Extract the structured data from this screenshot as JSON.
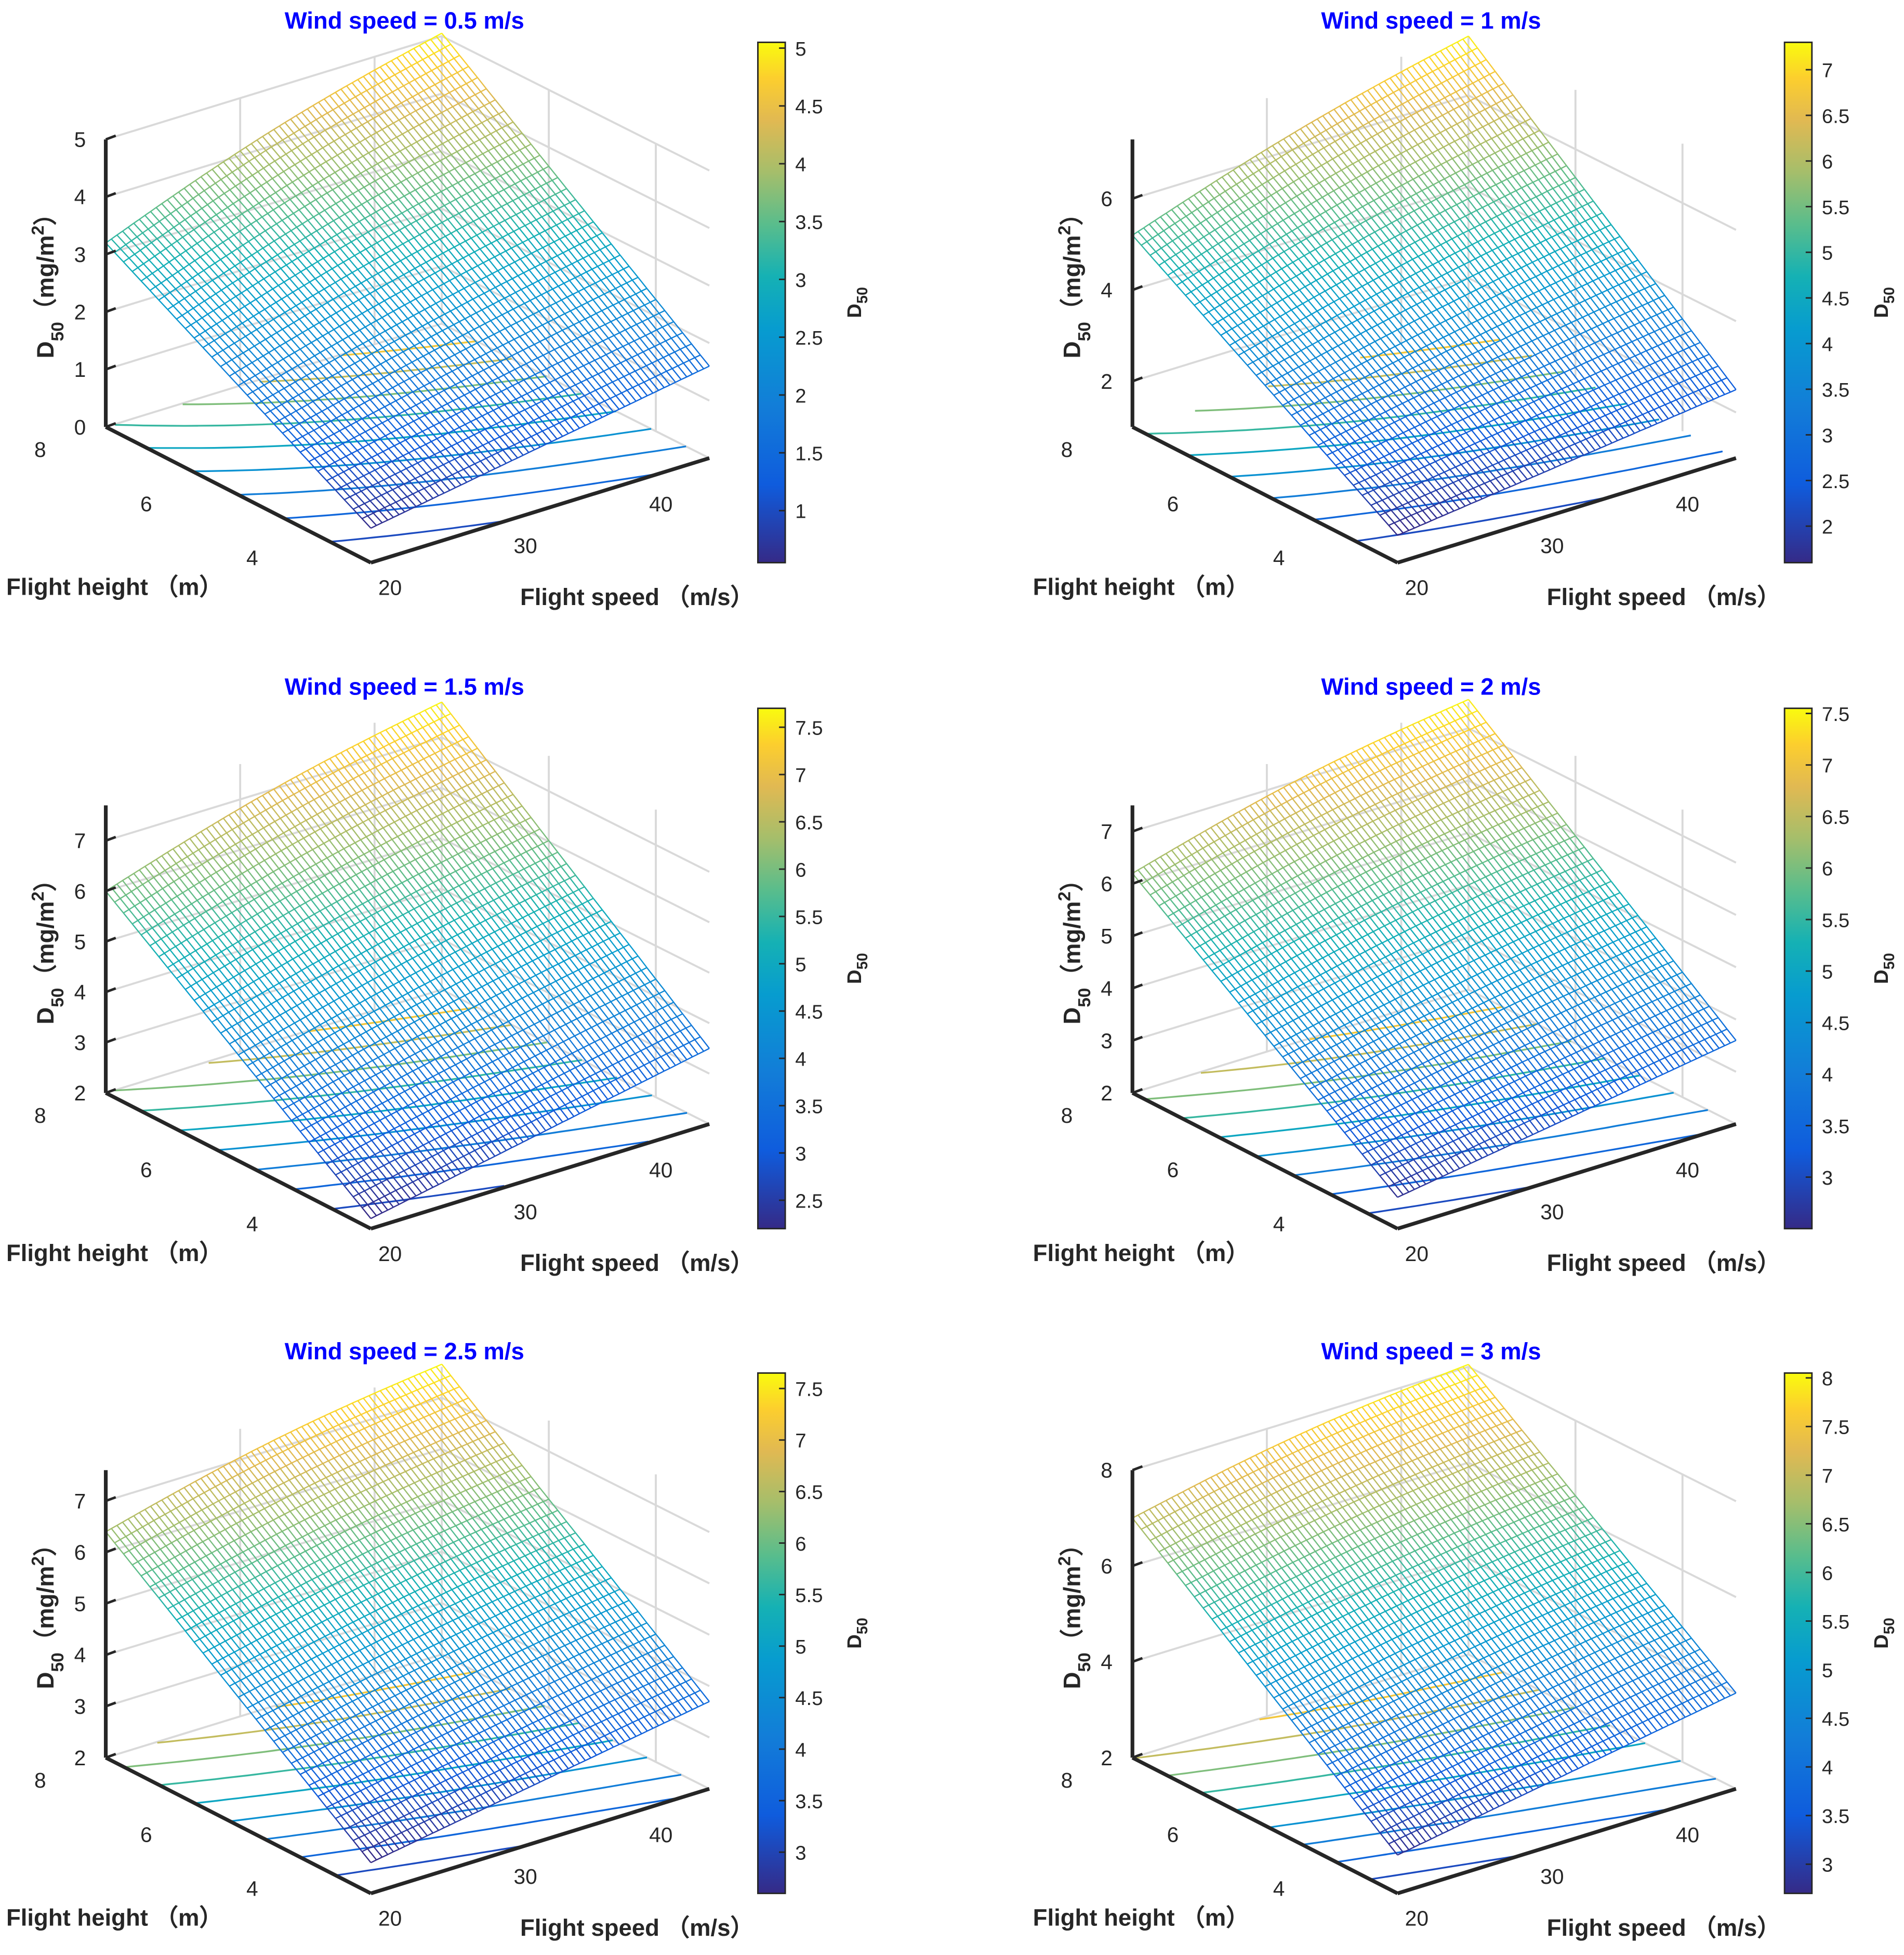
{
  "chart_data": [
    {
      "type": "surface3d",
      "title": "Wind speed = 0.5 m/s",
      "xlabel": "Flight speed （m/s）",
      "ylabel": "Flight height （m）",
      "zlabel_main": "D",
      "zlabel_sub": "50",
      "zlabel_unit": "（mg/m",
      "zlabel_sup": "2",
      "zlabel_close": "）",
      "colorbar_label_main": "D",
      "colorbar_label_sub": "50",
      "x_ticks": [
        "20",
        "30",
        "40"
      ],
      "y_ticks": [
        "4",
        "6",
        "8"
      ],
      "z_ticks": [
        "0",
        "1",
        "2",
        "3",
        "4",
        "5"
      ],
      "xlim": [
        20,
        45
      ],
      "ylim": [
        3,
        8
      ],
      "zlim": [
        0,
        5
      ],
      "colorbar_ticks": [
        "1",
        "1.5",
        "2",
        "2.5",
        "3",
        "3.5",
        "4",
        "4.5",
        "5"
      ],
      "clim": [
        0.55,
        5.05
      ],
      "corners": {
        "x20_y3": 0.6,
        "x45_y3": 1.6,
        "x20_y8": 3.2,
        "x45_y8": 5.05
      }
    },
    {
      "type": "surface3d",
      "title": "Wind speed =  1 m/s",
      "xlabel": "Flight speed （m/s）",
      "ylabel": "Flight height （m）",
      "zlabel_main": "D",
      "zlabel_sub": "50",
      "zlabel_unit": "（mg/m",
      "zlabel_sup": "2",
      "zlabel_close": "）",
      "colorbar_label_main": "D",
      "colorbar_label_sub": "50",
      "x_ticks": [
        "20",
        "30",
        "40"
      ],
      "y_ticks": [
        "4",
        "6",
        "8"
      ],
      "z_ticks": [
        "2",
        "4",
        "6"
      ],
      "xlim": [
        20,
        45
      ],
      "ylim": [
        3,
        8
      ],
      "zlim": [
        1,
        7.3
      ],
      "colorbar_ticks": [
        "2",
        "2.5",
        "3",
        "3.5",
        "4",
        "4.5",
        "5",
        "5.5",
        "6",
        "6.5",
        "7"
      ],
      "clim": [
        1.6,
        7.3
      ],
      "corners": {
        "x20_y3": 1.6,
        "x45_y3": 2.5,
        "x20_y8": 5.2,
        "x45_y8": 7.3
      }
    },
    {
      "type": "surface3d",
      "title": "Wind speed =  1.5 m/s",
      "xlabel": "Flight speed （m/s）",
      "ylabel": "Flight height （m）",
      "zlabel_main": "D",
      "zlabel_sub": "50",
      "zlabel_unit": "（mg/m",
      "zlabel_sup": "2",
      "zlabel_close": "）",
      "colorbar_label_main": "D",
      "colorbar_label_sub": "50",
      "x_ticks": [
        "20",
        "30",
        "40"
      ],
      "y_ticks": [
        "4",
        "6",
        "8"
      ],
      "z_ticks": [
        "2",
        "3",
        "4",
        "5",
        "6",
        "7"
      ],
      "xlim": [
        20,
        45
      ],
      "ylim": [
        3,
        8
      ],
      "zlim": [
        2,
        7.7
      ],
      "colorbar_ticks": [
        "2.5",
        "3",
        "3.5",
        "4",
        "4.5",
        "5",
        "5.5",
        "6",
        "6.5",
        "7",
        "7.5"
      ],
      "clim": [
        2.2,
        7.7
      ],
      "corners": {
        "x20_y3": 2.2,
        "x45_y3": 3.5,
        "x20_y8": 6.0,
        "x45_y8": 7.7
      }
    },
    {
      "type": "surface3d",
      "title": "Wind speed =  2 m/s",
      "xlabel": "Flight speed （m/s）",
      "ylabel": "Flight height （m）",
      "zlabel_main": "D",
      "zlabel_sub": "50",
      "zlabel_unit": "（mg/m",
      "zlabel_sup": "2",
      "zlabel_close": "）",
      "colorbar_label_main": "D",
      "colorbar_label_sub": "50",
      "x_ticks": [
        "20",
        "30",
        "40"
      ],
      "y_ticks": [
        "4",
        "6",
        "8"
      ],
      "z_ticks": [
        "2",
        "3",
        "4",
        "5",
        "6",
        "7"
      ],
      "xlim": [
        20,
        45
      ],
      "ylim": [
        3,
        8
      ],
      "zlim": [
        2,
        7.5
      ],
      "colorbar_ticks": [
        "3",
        "3.5",
        "4",
        "4.5",
        "5",
        "5.5",
        "6",
        "6.5",
        "7",
        "7.5"
      ],
      "clim": [
        2.5,
        7.55
      ],
      "corners": {
        "x20_y3": 2.6,
        "x45_y3": 3.6,
        "x20_y8": 6.2,
        "x45_y8": 7.55
      }
    },
    {
      "type": "surface3d",
      "title": "Wind speed =  2.5 m/s",
      "xlabel": "Flight speed （m/s）",
      "ylabel": "Flight height （m）",
      "zlabel_main": "D",
      "zlabel_sub": "50",
      "zlabel_unit": "（mg/m",
      "zlabel_sup": "2",
      "zlabel_close": "）",
      "colorbar_label_main": "D",
      "colorbar_label_sub": "50",
      "x_ticks": [
        "20",
        "30",
        "40"
      ],
      "y_ticks": [
        "4",
        "6",
        "8"
      ],
      "z_ticks": [
        "2",
        "3",
        "4",
        "5",
        "6",
        "7"
      ],
      "xlim": [
        20,
        45
      ],
      "ylim": [
        3,
        8
      ],
      "zlim": [
        2,
        7.6
      ],
      "colorbar_ticks": [
        "3",
        "3.5",
        "4",
        "4.5",
        "5",
        "5.5",
        "6",
        "6.5",
        "7",
        "7.5"
      ],
      "clim": [
        2.6,
        7.65
      ],
      "corners": {
        "x20_y3": 2.6,
        "x45_y3": 3.7,
        "x20_y8": 6.4,
        "x45_y8": 7.65
      }
    },
    {
      "type": "surface3d",
      "title": "Wind speed =  3 m/s",
      "xlabel": "Flight speed （m/s）",
      "ylabel": "Flight height （m）",
      "zlabel_main": "D",
      "zlabel_sub": "50",
      "zlabel_unit": "（mg/m",
      "zlabel_sup": "2",
      "zlabel_close": "）",
      "colorbar_label_main": "D",
      "colorbar_label_sub": "50",
      "x_ticks": [
        "20",
        "30",
        "40"
      ],
      "y_ticks": [
        "4",
        "6",
        "8"
      ],
      "z_ticks": [
        "2",
        "4",
        "6",
        "8"
      ],
      "xlim": [
        20,
        45
      ],
      "ylim": [
        3,
        8
      ],
      "zlim": [
        2,
        8
      ],
      "colorbar_ticks": [
        "3",
        "3.5",
        "4",
        "4.5",
        "5",
        "5.5",
        "6",
        "6.5",
        "7",
        "7.5",
        "8"
      ],
      "clim": [
        2.7,
        8.05
      ],
      "corners": {
        "x20_y3": 2.8,
        "x45_y3": 4.0,
        "x20_y8": 7.0,
        "x45_y8": 8.05
      }
    }
  ]
}
